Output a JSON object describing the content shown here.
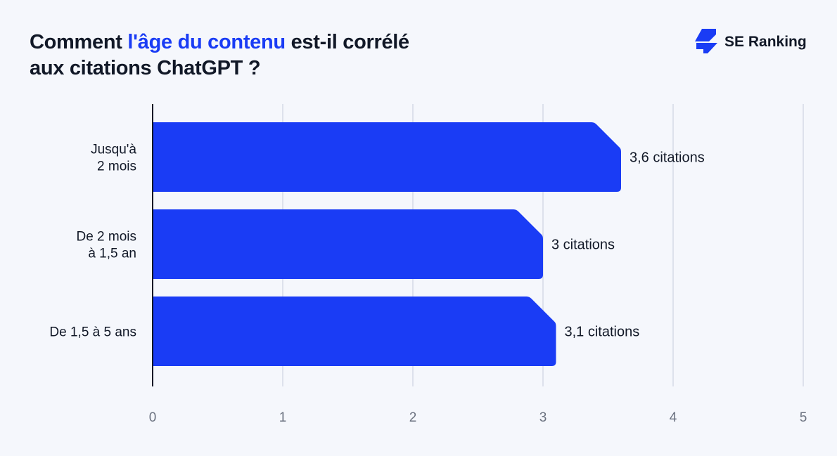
{
  "title": {
    "part1": "Comment ",
    "highlight": "l'âge du contenu",
    "part2": " est-il corrélé",
    "line2": "aux citations ChatGPT ?"
  },
  "brand": {
    "name": "SE Ranking",
    "icon": "se-ranking-logo-icon"
  },
  "colors": {
    "bar": "#1a3cf5",
    "highlight": "#1a3cf5",
    "grid": "#dde1ec"
  },
  "chart_data": {
    "type": "bar",
    "orientation": "horizontal",
    "categories": [
      [
        "Jusqu'à",
        "2 mois"
      ],
      [
        "De 2 mois",
        "à 1,5 an"
      ],
      [
        "De 1,5 à 5 ans"
      ]
    ],
    "values": [
      3.6,
      3.0,
      3.1
    ],
    "data_labels": [
      "3,6 citations",
      "3 citations",
      "3,1 citations"
    ],
    "xlim": [
      0,
      5
    ],
    "x_ticks": [
      "0",
      "1",
      "2",
      "3",
      "4",
      "5"
    ],
    "grid": true
  }
}
